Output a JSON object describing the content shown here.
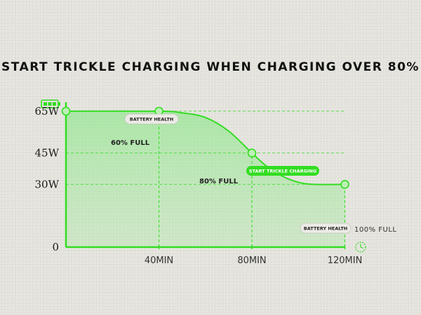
{
  "title": "START TRICKLE CHARGING WHEN CHARGING OVER 80%",
  "colors": {
    "line": "#33dd22",
    "fill": "#7ce87a",
    "accent": "#22cc11"
  },
  "icons": {
    "battery": "battery-full-icon",
    "clock": "clock-icon"
  },
  "chart_data": {
    "type": "line",
    "title": "START TRICKLE CHARGING WHEN CHARGING OVER 80%",
    "ylabel": "",
    "xlabel": "",
    "y_ticks": [
      {
        "value": 0,
        "label": "0"
      },
      {
        "value": 30,
        "label": "30W"
      },
      {
        "value": 45,
        "label": "45W"
      },
      {
        "value": 65,
        "label": "65W"
      }
    ],
    "x_ticks": [
      {
        "value": 40,
        "label": "40MIN"
      },
      {
        "value": 80,
        "label": "80MIN"
      },
      {
        "value": 120,
        "label": "120MIN"
      }
    ],
    "xlim": [
      0,
      128
    ],
    "ylim": [
      0,
      74
    ],
    "series": [
      {
        "x": [
          0,
          40,
          50,
          60,
          70,
          80,
          86,
          93,
          100,
          107,
          120
        ],
        "y": [
          65,
          65,
          64.2,
          62,
          55.5,
          45,
          39,
          34,
          31,
          30,
          30
        ]
      }
    ],
    "markers": [
      {
        "x": 0,
        "y": 65
      },
      {
        "x": 40,
        "y": 65
      },
      {
        "x": 80,
        "y": 45
      },
      {
        "x": 120,
        "y": 30
      }
    ],
    "annotations": {
      "point_60": "60% FULL",
      "point_80": "80% FULL",
      "point_100": "100% FULL",
      "battery_health_top": "BATTERY HEALTH",
      "battery_health_bottom": "BATTERY HEALTH",
      "trickle": "START TRICKLE CHARGING"
    },
    "grid": true,
    "legend": "none"
  }
}
